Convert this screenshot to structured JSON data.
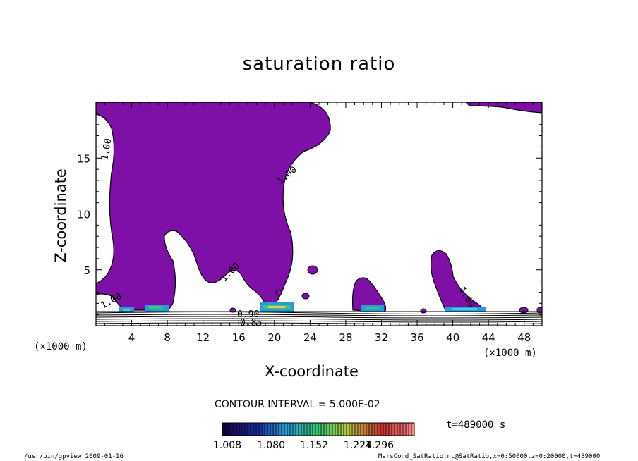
{
  "chart_data": {
    "type": "contour",
    "title": "saturation ratio",
    "xlabel": "X-coordinate",
    "ylabel": "Z-coordinate",
    "x_unit_label": "(×1000 m)",
    "xlim": [
      0,
      50
    ],
    "ylim": [
      0,
      20
    ],
    "x_ticks": [
      4,
      8,
      12,
      16,
      20,
      24,
      28,
      32,
      36,
      40,
      44,
      48
    ],
    "y_ticks": [
      5,
      10,
      15
    ],
    "contour_interval_text": "CONTOUR INTERVAL = 5.000E-02",
    "contour_labels": [
      "1.00",
      "1.00",
      "1.00",
      "1.00",
      "1.00",
      "0.90",
      "0.85"
    ],
    "colorbar": {
      "ticks": [
        "1.008",
        "1.080",
        "1.152",
        "1.224",
        "1.296"
      ],
      "colors": [
        "#1a0040",
        "#1a2aa0",
        "#2a9ad8",
        "#3ac870",
        "#c8d040",
        "#c83030",
        "#ff8080"
      ]
    },
    "fill_color": "#7e10a8",
    "time_label": "t=489000 s"
  },
  "footer": {
    "left": "/usr/bin/gpview  2009-01-16",
    "right": "MarsCond_SatRatio.nc@SatRatio,x=0:50000,z=0:20000,t=489000"
  }
}
